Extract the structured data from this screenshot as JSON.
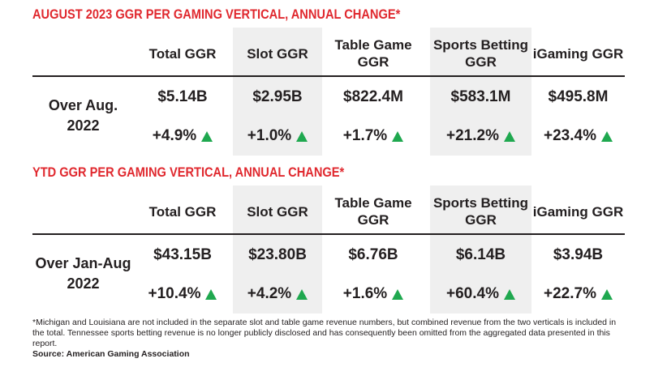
{
  "columns": [
    "Total GGR",
    "Slot GGR",
    "Table Game GGR",
    "Sports Betting GGR",
    "iGaming GGR"
  ],
  "sections": [
    {
      "title": "AUGUST 2023 GGR PER GAMING VERTICAL, ANNUAL CHANGE*",
      "row_label": "Over Aug. 2022",
      "values": [
        "$5.14B",
        "$2.95B",
        "$822.4M",
        "$583.1M",
        "$495.8M"
      ],
      "changes": [
        "+4.9%",
        "+1.0%",
        "+1.7%",
        "+21.2%",
        "+23.4%"
      ]
    },
    {
      "title": "YTD GGR PER GAMING VERTICAL, ANNUAL CHANGE*",
      "row_label": "Over Jan-Aug 2022",
      "values": [
        "$43.15B",
        "$23.80B",
        "$6.76B",
        "$6.14B",
        "$3.94B"
      ],
      "changes": [
        "+10.4%",
        "+4.2%",
        "+1.6%",
        "+60.4%",
        "+22.7%"
      ]
    }
  ],
  "footnote": "*Michigan and Louisiana are not included in the separate slot and table game revenue numbers, but combined revenue from the two verticals is included in the total. Tennessee sports betting revenue is no longer publicly disclosed and has consequently been omitted from the aggregated data presented in this report.",
  "source": "Source: American Gaming Association",
  "colors": {
    "title": "#e0282e",
    "up": "#1fa84f",
    "shade": "#efefef"
  }
}
